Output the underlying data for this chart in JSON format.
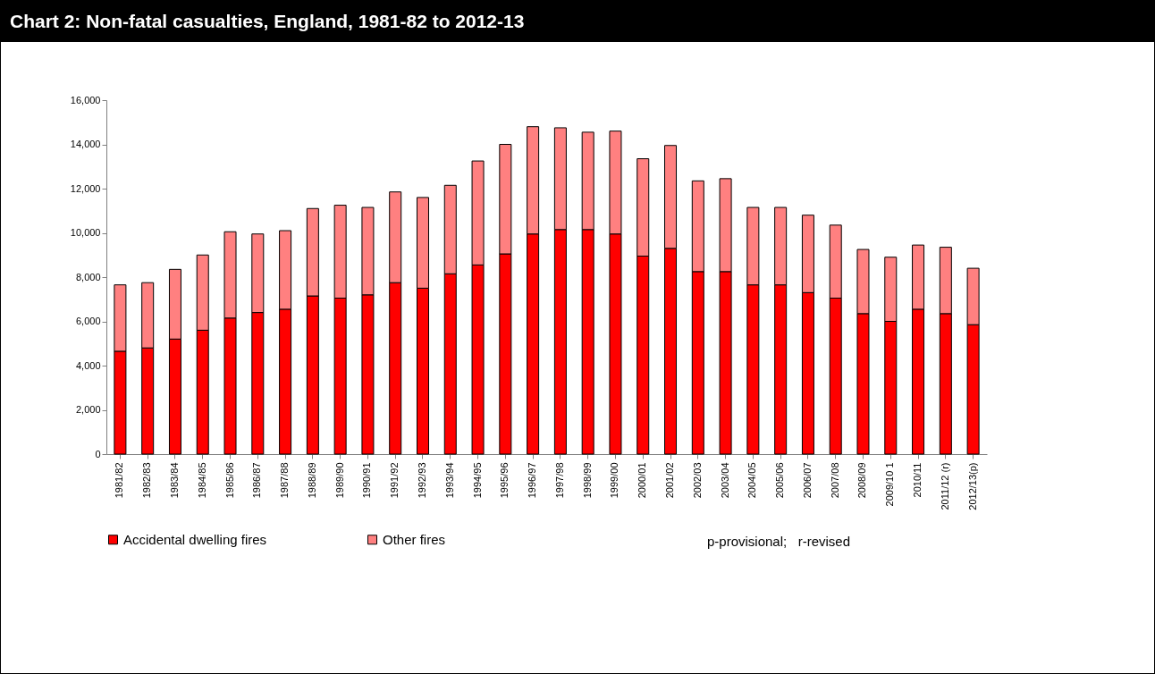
{
  "chart_data": {
    "type": "bar",
    "title": "Chart 2: Non-fatal casualties, England, 1981-82 to 2012-13",
    "categories": [
      "1981/82",
      "1982/83",
      "1983/84",
      "1984/85",
      "1985/86",
      "1986/87",
      "1987/88",
      "1988/89",
      "1989/90",
      "1990/91",
      "1991/92",
      "1992/93",
      "1993/94",
      "1994/95",
      "1995/96",
      "1996/97",
      "1997/98",
      "1998/99",
      "1999/00",
      "2000/01",
      "2001/02",
      "2002/03",
      "2003/04",
      "2004/05",
      "2005/06",
      "2006/07",
      "2007/08",
      "2008/09",
      "2009/10 1",
      "2010/11",
      "2011/12 (r)",
      "2012/13(p)"
    ],
    "series": [
      {
        "name": "Accidental dwelling fires",
        "color": "#ff0000",
        "values": [
          4650,
          4800,
          5200,
          5600,
          6150,
          6400,
          6550,
          7150,
          7050,
          7200,
          7750,
          7500,
          8150,
          8550,
          9050,
          9950,
          10150,
          10150,
          9950,
          8950,
          9300,
          8250,
          8250,
          7650,
          7650,
          7300,
          7050,
          6350,
          6000,
          6550,
          6350,
          5850
        ]
      },
      {
        "name": "Other fires",
        "color": "#ff8080",
        "values": [
          3000,
          2950,
          3150,
          3400,
          3900,
          3550,
          3550,
          3950,
          4200,
          3950,
          4100,
          4100,
          4000,
          4700,
          4950,
          4850,
          4600,
          4400,
          4650,
          4400,
          4650,
          4100,
          4200,
          3500,
          3500,
          3500,
          3300,
          2900,
          2900,
          2900,
          3000,
          2550
        ]
      }
    ],
    "stacked": true,
    "ylim": [
      0,
      16000
    ],
    "yticks": [
      0,
      {
        "value": 2000,
        "label": "2,000"
      },
      {
        "value": 4000,
        "label": "4,000"
      },
      {
        "value": 6000,
        "label": "6,000"
      },
      {
        "value": 8000,
        "label": "8,000"
      },
      {
        "value": 10000,
        "label": "10,000"
      },
      {
        "value": 12000,
        "label": "12,000"
      },
      {
        "value": 14000,
        "label": "14,000"
      },
      {
        "value": 16000,
        "label": "16,000"
      }
    ],
    "grid": false,
    "legend": "bottom",
    "annotations": [
      "p-provisional;   r-revised"
    ]
  }
}
